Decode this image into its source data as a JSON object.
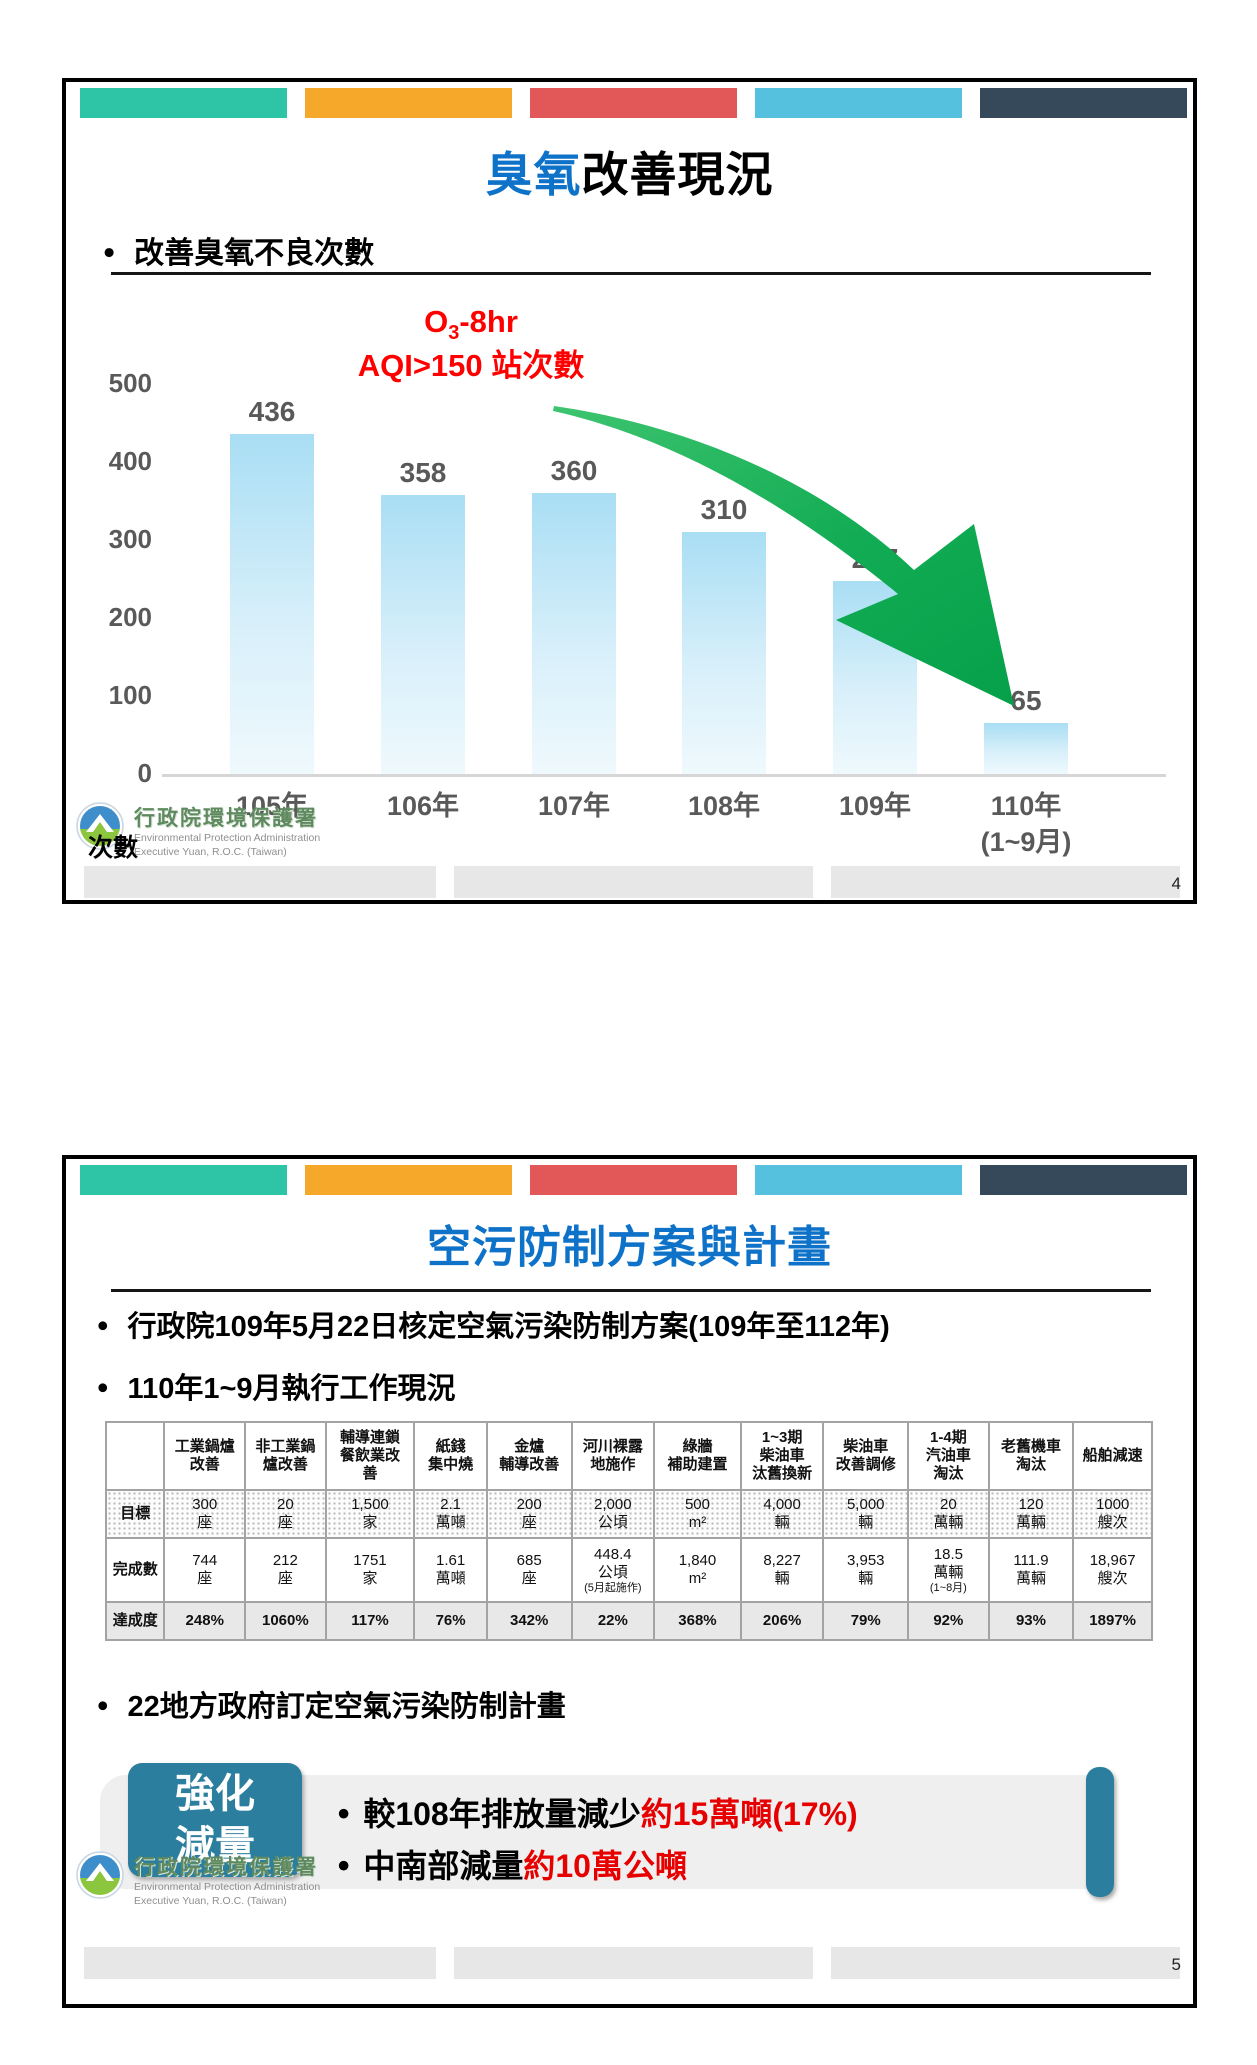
{
  "colors": {
    "header_bars": [
      "#2EC4A6",
      "#F5A829",
      "#E25757",
      "#55C1DE",
      "#36495A"
    ],
    "title_accent_blue": "#0E72C8",
    "annotation_red": "#FF0000",
    "bar_gradient_top": "#A9DEF4",
    "bar_gradient_bottom": "#EFF9FD",
    "arrow_green": "#0AA24C",
    "callout_teal": "#2B7E9E",
    "axis_gray": "#595959"
  },
  "logo": {
    "zh": "行政院環境保護署",
    "en1": "Environmental Protection Administration",
    "en2": "Executive Yuan, R.O.C. (Taiwan)"
  },
  "slide1": {
    "page_number": "4",
    "title_accent": "臭氧",
    "title_rest": "改善現況",
    "bullet": "改善臭氧不良次數",
    "annotation": {
      "pre": "O",
      "sub": "3",
      "post": "-8hr",
      "line2": "AQI>150 站次數"
    },
    "y_axis_title": "次數"
  },
  "chart_data": {
    "type": "bar",
    "title": "O3-8hr AQI>150 站次數",
    "categories": [
      "105年",
      "106年",
      "107年",
      "108年",
      "109年",
      "110年\n(1~9月)"
    ],
    "values": [
      436,
      358,
      360,
      310,
      247,
      65
    ],
    "xlabel": "",
    "ylabel": "次數",
    "ylim": [
      0,
      500
    ],
    "yticks": [
      0,
      100,
      200,
      300,
      400,
      500
    ],
    "grid": false,
    "legend": "none",
    "annotation": "O3-8hr AQI>150 站次數, 大綠色下降箭頭"
  },
  "slide2": {
    "page_number": "5",
    "title": "空污防制方案與計畫",
    "bullets": [
      "行政院109年5月22日核定空氣污染防制方案(109年至112年)",
      "110年1~9月執行工作現況",
      "22地方政府訂定空氣污染防制計畫"
    ],
    "table": {
      "row_labels": [
        "目標",
        "完成數",
        "達成度"
      ],
      "columns": [
        {
          "header": "工業鍋爐\n改善",
          "goal": "300\n座",
          "done": "744\n座",
          "rate": "248%"
        },
        {
          "header": "非工業鍋\n爐改善",
          "goal": "20\n座",
          "done": "212\n座",
          "rate": "1060%"
        },
        {
          "header": "輔導連鎖\n餐飲業改\n善",
          "goal": "1,500\n家",
          "done": "1751\n家",
          "rate": "117%"
        },
        {
          "header": "紙錢\n集中燒",
          "goal": "2.1\n萬噸",
          "done": "1.61\n萬噸",
          "rate": "76%"
        },
        {
          "header": "金爐\n輔導改善",
          "goal": "200\n座",
          "done": "685\n座",
          "rate": "342%"
        },
        {
          "header": "河川裸露\n地施作",
          "goal": "2,000\n公頃",
          "done": "448.4\n公頃",
          "done_note": "(5月起施作)",
          "rate": "22%"
        },
        {
          "header": "綠牆\n補助建置",
          "goal": "500\nm²",
          "done": "1,840\nm²",
          "rate": "368%"
        },
        {
          "header": "1~3期\n柴油車\n汰舊換新",
          "goal": "4,000\n輛",
          "done": "8,227\n輛",
          "rate": "206%"
        },
        {
          "header": "柴油車\n改善調修",
          "goal": "5,000\n輛",
          "done": "3,953\n輛",
          "rate": "79%"
        },
        {
          "header": "1-4期\n汽油車\n淘汰",
          "goal": "20\n萬輛",
          "done": "18.5\n萬輛",
          "done_note": "(1~8月)",
          "rate": "92%"
        },
        {
          "header": "老舊機車\n淘汰",
          "goal": "120\n萬輛",
          "done": "111.9\n萬輛",
          "rate": "93%"
        },
        {
          "header": "船舶減速",
          "goal": "1000\n艘次",
          "done": "18,967\n艘次",
          "rate": "1897%"
        }
      ]
    },
    "callout": {
      "label_line1": "強化",
      "label_line2": "減量",
      "items": [
        {
          "black": "較108年排放量減少",
          "red": "約15萬噸(17%)"
        },
        {
          "black": "中南部減量",
          "red": "約10萬公噸"
        }
      ]
    }
  }
}
